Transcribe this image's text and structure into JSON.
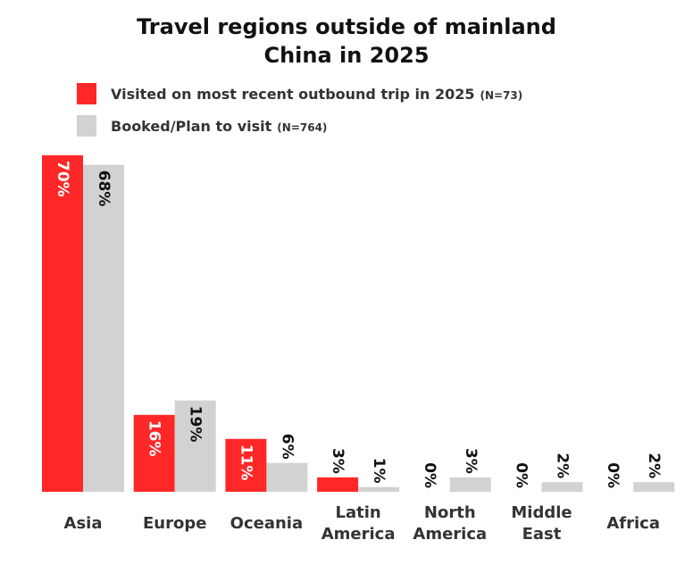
{
  "chart_data": {
    "type": "bar",
    "title_lines": [
      "Travel regions outside of mainland",
      "China in 2025"
    ],
    "categories": [
      [
        "Asia"
      ],
      [
        "Europe"
      ],
      [
        "Oceania"
      ],
      [
        "Latin",
        "America"
      ],
      [
        "North",
        "America"
      ],
      [
        "Middle",
        "East"
      ],
      [
        "Africa"
      ]
    ],
    "series": [
      {
        "name": "Visited on most recent outbound trip in 2025",
        "n_label": "(N=73)",
        "color": "#ff2727",
        "values": [
          70,
          16,
          11,
          3,
          0,
          0,
          0
        ],
        "labels": [
          "70%",
          "16%",
          "11%",
          "3%",
          "0%",
          "0%",
          "0%"
        ]
      },
      {
        "name": "Booked/Plan to visit",
        "n_label": "(N=764)",
        "color": "#d2d2d2",
        "values": [
          68,
          19,
          6,
          1,
          3,
          2,
          2
        ],
        "labels": [
          "68%",
          "19%",
          "6%",
          "1%",
          "3%",
          "2%",
          "2%"
        ]
      }
    ],
    "ylim": [
      0,
      70
    ],
    "grid": false,
    "legend_position": "top-left",
    "data_label_orientation": "rotated 90 degrees"
  }
}
